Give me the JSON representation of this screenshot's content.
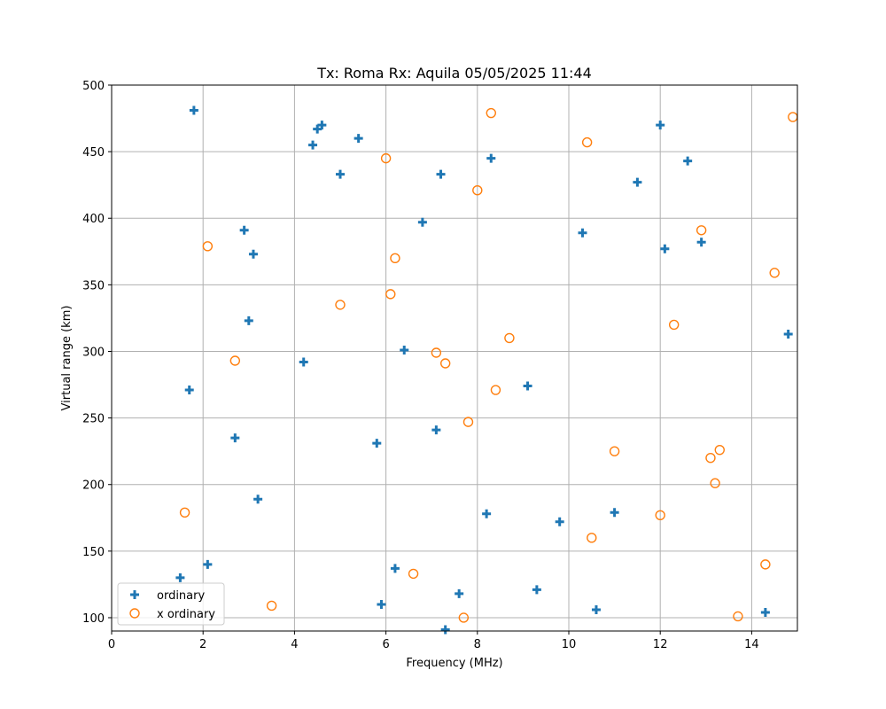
{
  "chart_data": {
    "type": "scatter",
    "title": "Tx: Roma Rx: Aquila 05/05/2025 11:44",
    "xlabel": "Frequency (MHz)",
    "ylabel": "Virtual range (km)",
    "xlim": [
      0,
      15
    ],
    "ylim": [
      90,
      500
    ],
    "xticks": [
      0,
      2,
      4,
      6,
      8,
      10,
      12,
      14
    ],
    "yticks": [
      100,
      150,
      200,
      250,
      300,
      350,
      400,
      450,
      500
    ],
    "grid": true,
    "legend_position": "lower left",
    "series": [
      {
        "name": "ordinary",
        "marker": "plus",
        "color": "#1f77b4",
        "points": [
          [
            1.8,
            481
          ],
          [
            4.4,
            455
          ],
          [
            4.5,
            467
          ],
          [
            4.6,
            470
          ],
          [
            5.4,
            460
          ],
          [
            5.0,
            433
          ],
          [
            2.9,
            391
          ],
          [
            3.1,
            373
          ],
          [
            3.0,
            323
          ],
          [
            1.7,
            271
          ],
          [
            2.7,
            235
          ],
          [
            3.2,
            189
          ],
          [
            2.1,
            140
          ],
          [
            1.5,
            130
          ],
          [
            4.2,
            292
          ],
          [
            5.8,
            231
          ],
          [
            6.4,
            301
          ],
          [
            6.8,
            397
          ],
          [
            7.2,
            433
          ],
          [
            8.3,
            445
          ],
          [
            7.1,
            241
          ],
          [
            8.2,
            178
          ],
          [
            9.1,
            274
          ],
          [
            9.8,
            172
          ],
          [
            10.3,
            389
          ],
          [
            11.5,
            427
          ],
          [
            12.0,
            470
          ],
          [
            12.6,
            443
          ],
          [
            12.1,
            377
          ],
          [
            12.9,
            382
          ],
          [
            11.0,
            179
          ],
          [
            14.8,
            313
          ],
          [
            6.2,
            137
          ],
          [
            5.9,
            110
          ],
          [
            7.6,
            118
          ],
          [
            9.3,
            121
          ],
          [
            10.6,
            106
          ],
          [
            7.3,
            91
          ],
          [
            14.3,
            104
          ]
        ]
      },
      {
        "name": "x ordinary",
        "marker": "circle",
        "color": "#ff7f0e",
        "points": [
          [
            2.1,
            379
          ],
          [
            2.7,
            293
          ],
          [
            1.6,
            179
          ],
          [
            3.5,
            109
          ],
          [
            5.0,
            335
          ],
          [
            6.0,
            445
          ],
          [
            6.2,
            370
          ],
          [
            6.1,
            343
          ],
          [
            6.6,
            133
          ],
          [
            7.1,
            299
          ],
          [
            7.3,
            291
          ],
          [
            7.8,
            247
          ],
          [
            7.7,
            100
          ],
          [
            8.0,
            421
          ],
          [
            8.3,
            479
          ],
          [
            8.4,
            271
          ],
          [
            8.7,
            310
          ],
          [
            10.4,
            457
          ],
          [
            10.5,
            160
          ],
          [
            11.0,
            225
          ],
          [
            12.0,
            177
          ],
          [
            12.3,
            320
          ],
          [
            12.9,
            391
          ],
          [
            13.1,
            220
          ],
          [
            13.2,
            201
          ],
          [
            13.3,
            226
          ],
          [
            13.7,
            101
          ],
          [
            14.3,
            140
          ],
          [
            14.5,
            359
          ],
          [
            14.9,
            476
          ]
        ]
      }
    ]
  }
}
